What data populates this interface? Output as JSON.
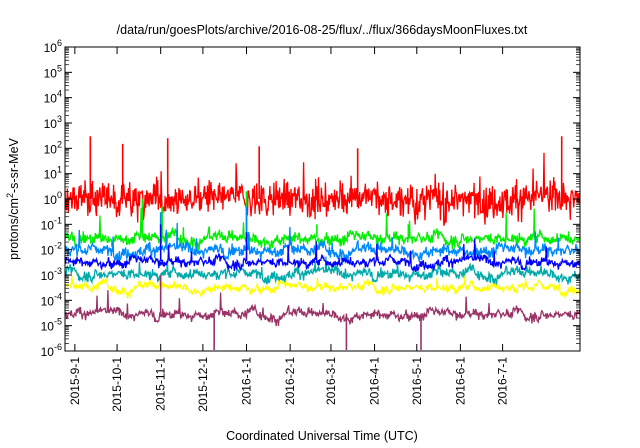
{
  "chart_data": {
    "type": "line",
    "title": "/data/run/goesPlots/archive/2016-08-25/flux/../flux/366daysMoonFluxes.txt",
    "xlabel": "Coordinated Universal Time (UTC)",
    "ylabel": "protons/cm²-s-sr-MeV",
    "ylabel_parts": {
      "before": "protons/cm",
      "sup": "2",
      "after": "-s-sr-MeV"
    },
    "yscale": "log",
    "ylim": [
      1e-06,
      1000000.0
    ],
    "xlim": [
      "2015-08-25",
      "2016-08-25"
    ],
    "y_ticks": [
      {
        "base": "10",
        "exp": "-6",
        "value": 1e-06
      },
      {
        "base": "10",
        "exp": "-5",
        "value": 1e-05
      },
      {
        "base": "10",
        "exp": "-4",
        "value": 0.0001
      },
      {
        "base": "10",
        "exp": "-3",
        "value": 0.001
      },
      {
        "base": "10",
        "exp": "-2",
        "value": 0.01
      },
      {
        "base": "10",
        "exp": "-1",
        "value": 0.1
      },
      {
        "base": "10",
        "exp": "0",
        "value": 1
      },
      {
        "base": "10",
        "exp": "1",
        "value": 10
      },
      {
        "base": "10",
        "exp": "2",
        "value": 100
      },
      {
        "base": "10",
        "exp": "3",
        "value": 1000
      },
      {
        "base": "10",
        "exp": "4",
        "value": 10000
      },
      {
        "base": "10",
        "exp": "5",
        "value": 100000
      },
      {
        "base": "10",
        "exp": "6",
        "value": 1000000
      }
    ],
    "x_ticks": [
      {
        "label": "2015-9-1",
        "date": "2015-09-01"
      },
      {
        "label": "2015-10-1",
        "date": "2015-10-01"
      },
      {
        "label": "2015-11-1",
        "date": "2015-11-01"
      },
      {
        "label": "2015-12-1",
        "date": "2015-12-01"
      },
      {
        "label": "2016-1-1",
        "date": "2016-01-01"
      },
      {
        "label": "2016-2-1",
        "date": "2016-02-01"
      },
      {
        "label": "2016-3-1",
        "date": "2016-03-01"
      },
      {
        "label": "2016-4-1",
        "date": "2016-04-01"
      },
      {
        "label": "2016-5-1",
        "date": "2016-05-01"
      },
      {
        "label": "2016-6-1",
        "date": "2016-06-01"
      },
      {
        "label": "2016-7-1",
        "date": "2016-07-01"
      }
    ],
    "grid": false,
    "legend": "none",
    "series": [
      {
        "color": "#ff0000",
        "typical": 1.0,
        "noise_decades": 1.2,
        "spike_max": 300,
        "spikes": [
          {
            "date": "2015-09-12",
            "value": 300
          },
          {
            "date": "2015-10-05",
            "value": 150
          },
          {
            "date": "2015-11-06",
            "value": 250
          },
          {
            "date": "2016-01-10",
            "value": 120
          },
          {
            "date": "2016-03-20",
            "value": 100
          },
          {
            "date": "2016-08-12",
            "value": 300
          }
        ]
      },
      {
        "color": "#00ee00",
        "typical": 0.03,
        "noise_decades": 0.35,
        "spike_max": 5,
        "spikes": [
          {
            "date": "2015-10-19",
            "value": 1.0
          },
          {
            "date": "2015-11-02",
            "value": 0.5
          },
          {
            "date": "2016-01-01",
            "value": 2.0
          },
          {
            "date": "2016-02-20",
            "value": 0.1
          },
          {
            "date": "2016-04-25",
            "value": 0.1
          }
        ]
      },
      {
        "color": "#0088ff",
        "typical": 0.01,
        "noise_decades": 0.35,
        "spike_max": 0.5,
        "spikes": [
          {
            "date": "2015-11-01",
            "value": 0.3
          },
          {
            "date": "2016-01-01",
            "value": 0.5
          }
        ]
      },
      {
        "color": "#00aaaa",
        "typical": 0.0012,
        "noise_decades": 0.3,
        "spike_max": 0.01,
        "spikes": []
      },
      {
        "color": "#0000ff",
        "typical": 0.0035,
        "noise_decades": 0.25,
        "spike_max": 0.1,
        "spikes": [
          {
            "date": "2015-11-01",
            "value": 0.1
          },
          {
            "date": "2016-01-01",
            "value": 0.05
          }
        ]
      },
      {
        "color": "#ffff00",
        "typical": 0.00035,
        "noise_decades": 0.2,
        "spike_max": 0.002,
        "spikes": []
      },
      {
        "color": "#993366",
        "typical": 3e-05,
        "noise_decades": 0.25,
        "spike_max": 0.001,
        "spikes": [
          {
            "date": "2015-11-01",
            "value": 0.001
          },
          {
            "date": "2015-12-09",
            "value": 1e-06
          },
          {
            "date": "2016-03-12",
            "value": 1e-06
          },
          {
            "date": "2016-05-04",
            "value": 1e-06
          }
        ]
      }
    ]
  }
}
